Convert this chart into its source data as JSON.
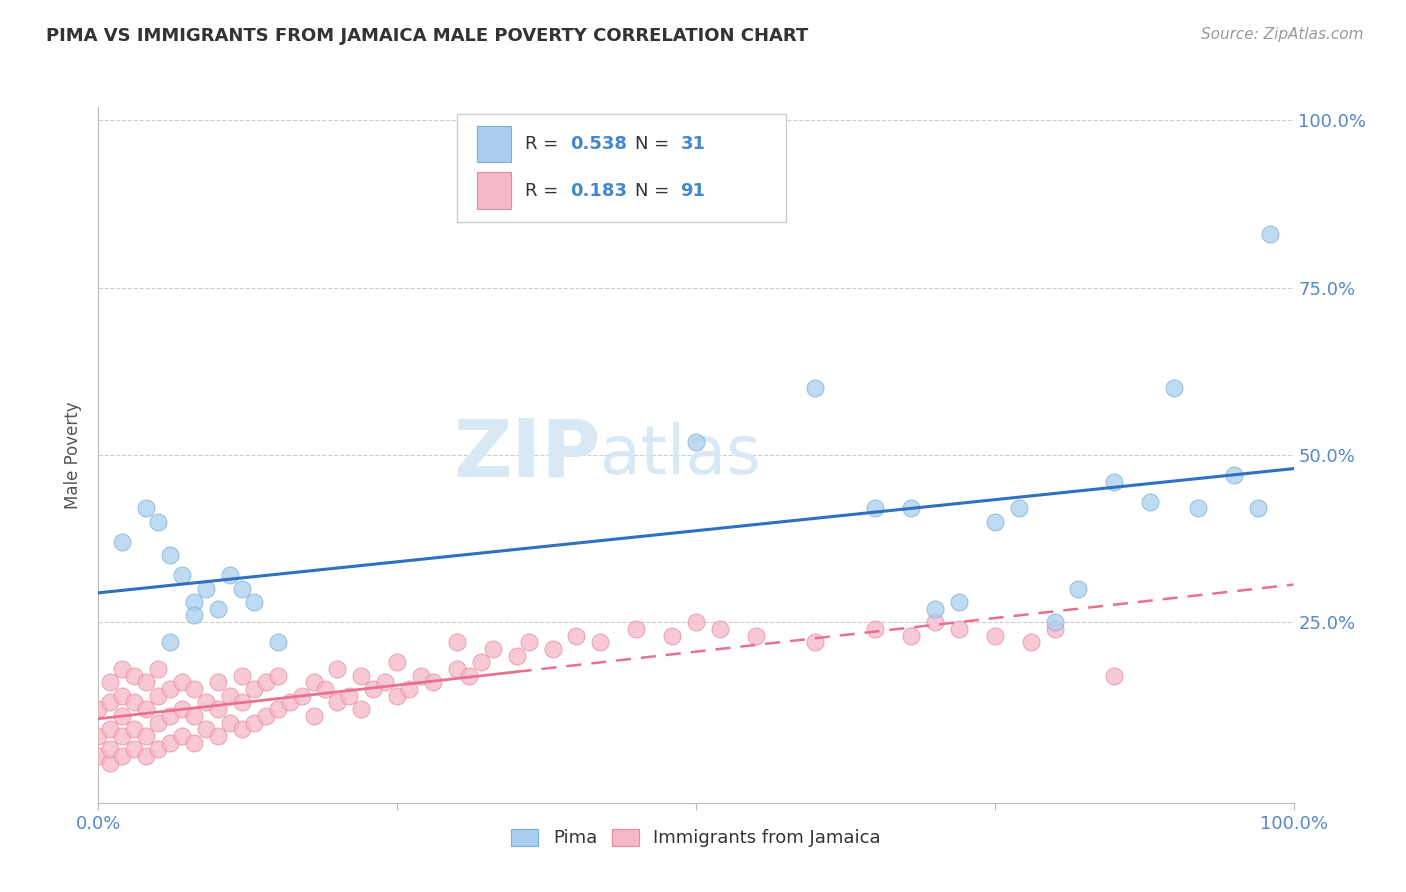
{
  "title": "PIMA VS IMMIGRANTS FROM JAMAICA MALE POVERTY CORRELATION CHART",
  "source": "Source: ZipAtlas.com",
  "ylabel": "Male Poverty",
  "xlim": [
    0,
    1
  ],
  "ylim": [
    0,
    1
  ],
  "ytick_labels": [
    "25.0%",
    "50.0%",
    "75.0%",
    "100.0%"
  ],
  "ytick_vals": [
    0.25,
    0.5,
    0.75,
    1.0
  ],
  "pima_color": "#aacfee",
  "jamaica_color": "#f5b8c8",
  "pima_edge": "#7aafd4",
  "jamaica_edge": "#e888a0",
  "trendline_pima_color": "#3070c0",
  "trendline_jamaica_color": "#e87090",
  "legend_label_pima": "Pima",
  "legend_label_jamaica": "Immigrants from Jamaica",
  "watermark_zip": "ZIP",
  "watermark_atlas": "atlas",
  "background_color": "#ffffff",
  "pima_x": [
    0.02,
    0.04,
    0.05,
    0.06,
    0.07,
    0.08,
    0.09,
    0.1,
    0.11,
    0.12,
    0.13,
    0.5,
    0.6,
    0.65,
    0.68,
    0.7,
    0.72,
    0.75,
    0.77,
    0.8,
    0.82,
    0.85,
    0.88,
    0.9,
    0.92,
    0.95,
    0.97,
    0.98,
    0.06,
    0.08,
    0.15
  ],
  "pima_y": [
    0.37,
    0.42,
    0.4,
    0.35,
    0.32,
    0.28,
    0.3,
    0.27,
    0.32,
    0.3,
    0.28,
    0.52,
    0.6,
    0.42,
    0.42,
    0.27,
    0.28,
    0.4,
    0.42,
    0.25,
    0.3,
    0.46,
    0.43,
    0.6,
    0.42,
    0.47,
    0.42,
    0.83,
    0.22,
    0.26,
    0.22
  ],
  "jamaica_x": [
    0.0,
    0.0,
    0.0,
    0.01,
    0.01,
    0.01,
    0.01,
    0.01,
    0.02,
    0.02,
    0.02,
    0.02,
    0.02,
    0.03,
    0.03,
    0.03,
    0.03,
    0.04,
    0.04,
    0.04,
    0.04,
    0.05,
    0.05,
    0.05,
    0.05,
    0.06,
    0.06,
    0.06,
    0.07,
    0.07,
    0.07,
    0.08,
    0.08,
    0.08,
    0.09,
    0.09,
    0.1,
    0.1,
    0.1,
    0.11,
    0.11,
    0.12,
    0.12,
    0.12,
    0.13,
    0.13,
    0.14,
    0.14,
    0.15,
    0.15,
    0.16,
    0.17,
    0.18,
    0.18,
    0.19,
    0.2,
    0.2,
    0.21,
    0.22,
    0.22,
    0.23,
    0.24,
    0.25,
    0.25,
    0.26,
    0.27,
    0.28,
    0.3,
    0.3,
    0.31,
    0.32,
    0.33,
    0.35,
    0.36,
    0.38,
    0.4,
    0.42,
    0.45,
    0.48,
    0.5,
    0.52,
    0.55,
    0.6,
    0.65,
    0.68,
    0.7,
    0.72,
    0.75,
    0.78,
    0.8,
    0.85
  ],
  "jamaica_y": [
    0.05,
    0.08,
    0.12,
    0.04,
    0.06,
    0.09,
    0.13,
    0.16,
    0.05,
    0.08,
    0.11,
    0.14,
    0.18,
    0.06,
    0.09,
    0.13,
    0.17,
    0.05,
    0.08,
    0.12,
    0.16,
    0.06,
    0.1,
    0.14,
    0.18,
    0.07,
    0.11,
    0.15,
    0.08,
    0.12,
    0.16,
    0.07,
    0.11,
    0.15,
    0.09,
    0.13,
    0.08,
    0.12,
    0.16,
    0.1,
    0.14,
    0.09,
    0.13,
    0.17,
    0.1,
    0.15,
    0.11,
    0.16,
    0.12,
    0.17,
    0.13,
    0.14,
    0.11,
    0.16,
    0.15,
    0.13,
    0.18,
    0.14,
    0.12,
    0.17,
    0.15,
    0.16,
    0.14,
    0.19,
    0.15,
    0.17,
    0.16,
    0.18,
    0.22,
    0.17,
    0.19,
    0.21,
    0.2,
    0.22,
    0.21,
    0.23,
    0.22,
    0.24,
    0.23,
    0.25,
    0.24,
    0.23,
    0.22,
    0.24,
    0.23,
    0.25,
    0.24,
    0.23,
    0.22,
    0.24,
    0.17
  ]
}
